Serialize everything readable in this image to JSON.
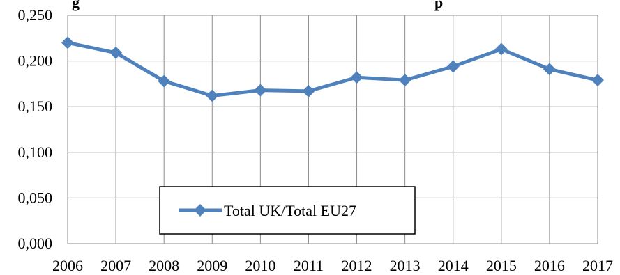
{
  "title_fragments": {
    "left": "g",
    "right": "p"
  },
  "chart_data": {
    "type": "line",
    "title": "",
    "xlabel": "",
    "ylabel": "",
    "categories": [
      "2006",
      "2007",
      "2008",
      "2009",
      "2010",
      "2011",
      "2012",
      "2013",
      "2014",
      "2015",
      "2016",
      "2017"
    ],
    "series": [
      {
        "name": "Total UK/Total EU27",
        "values": [
          0.22,
          0.209,
          0.178,
          0.162,
          0.168,
          0.167,
          0.182,
          0.179,
          0.194,
          0.213,
          0.191,
          0.179
        ],
        "color": "#4F81BD",
        "marker": "diamond"
      }
    ],
    "ylim": [
      0,
      0.25
    ],
    "yticks": [
      "0,000",
      "0,050",
      "0,100",
      "0,150",
      "0,200",
      "0,250"
    ],
    "grid": true,
    "legend": "bottom-left inside plot"
  }
}
